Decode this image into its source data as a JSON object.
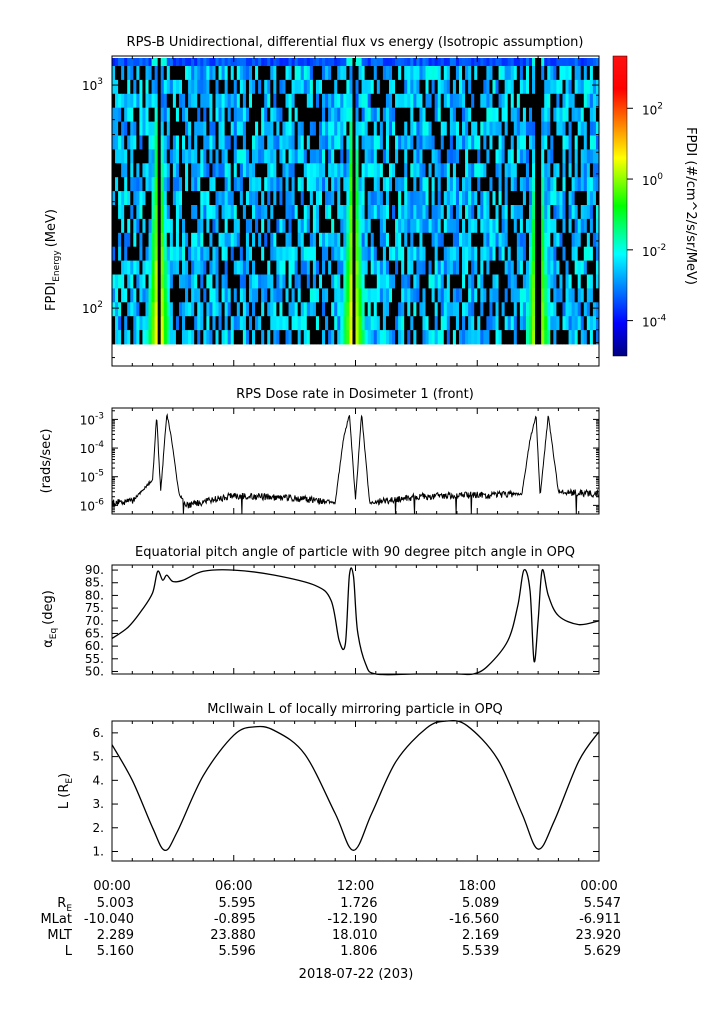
{
  "chart_data": [
    {
      "type": "heatmap",
      "title": "RPS-B  Unidirectional, differential flux vs energy (Isotropic assumption)",
      "ylabel": "FPDI",
      "ylabel_sub": "Energy",
      "ylabel_unit": "(MeV)",
      "y_scale": "log",
      "ylim": [
        55,
        1350
      ],
      "y_ticks": [
        {
          "value": 100,
          "base": "10",
          "exp": "2"
        },
        {
          "value": 1000,
          "base": "10",
          "exp": "3"
        }
      ],
      "colorbar": {
        "label": "FPDI (#/cm^2/s/sr/MeV)",
        "scale": "log",
        "range": [
          1e-05,
          3000
        ],
        "ticks": [
          {
            "value": 0.0001,
            "base": "10",
            "exp": "-4"
          },
          {
            "value": 0.01,
            "base": "10",
            "exp": "-2"
          },
          {
            "value": 1,
            "base": "10",
            "exp": "0"
          },
          {
            "value": 100,
            "base": "10",
            "exp": "2"
          }
        ]
      },
      "intensity_peaks_hours": [
        2.3,
        11.9,
        21.0
      ]
    },
    {
      "type": "line",
      "title": "RPS  Dose rate in Dosimeter 1 (front)",
      "ylabel": "(rads/sec)",
      "y_scale": "log",
      "ylim": [
        5e-07,
        0.0025
      ],
      "y_ticks": [
        {
          "value": 1e-06,
          "base": "10",
          "exp": "-6"
        },
        {
          "value": 1e-05,
          "base": "10",
          "exp": "-5"
        },
        {
          "value": 0.0001,
          "base": "10",
          "exp": "-4"
        },
        {
          "value": 0.001,
          "base": "10",
          "exp": "-3"
        }
      ],
      "x_hours": [
        0,
        1.0,
        2.0,
        2.2,
        2.4,
        2.7,
        2.9,
        3.3,
        3.7,
        6.0,
        9.0,
        11.0,
        11.4,
        11.7,
        12.0,
        12.3,
        12.7,
        15.0,
        18.0,
        20.2,
        20.6,
        20.9,
        21.1,
        21.5,
        22.0,
        24.0
      ],
      "values": [
        1.2e-06,
        1.4e-06,
        8e-06,
        0.0013,
        3e-06,
        0.0016,
        0.0003,
        2.5e-06,
        1e-06,
        2.2e-06,
        1.8e-06,
        1.2e-06,
        0.0002,
        0.0015,
        1.5e-06,
        0.0016,
        1.2e-06,
        2e-06,
        2.3e-06,
        2.5e-06,
        0.0002,
        0.0014,
        2e-06,
        0.0014,
        3e-06,
        2.5e-06
      ]
    },
    {
      "type": "line",
      "title": "Equatorial pitch angle of particle with 90 degree pitch angle in OPQ",
      "ylabel": "α",
      "ylabel_sub": "Eq",
      "ylabel_unit": "(deg)",
      "ylim": [
        49,
        92
      ],
      "y_ticks": [
        50,
        55,
        60,
        65,
        70,
        75,
        80,
        85,
        90
      ],
      "x_hours": [
        0,
        0.8,
        1.5,
        2.0,
        2.25,
        2.5,
        2.7,
        3.0,
        3.5,
        4.5,
        6.0,
        8.0,
        10.0,
        10.8,
        11.2,
        11.5,
        11.7,
        11.9,
        12.1,
        12.5,
        13.0,
        15.0,
        17.0,
        17.8,
        18.5,
        19.5,
        20.0,
        20.3,
        20.6,
        20.8,
        21.0,
        21.2,
        21.5,
        22.0,
        23.0,
        24.0
      ],
      "values": [
        63.0,
        67.5,
        74.5,
        81.0,
        89.5,
        86.0,
        88.0,
        85.5,
        86.0,
        89.5,
        90.0,
        88.0,
        84.0,
        78.0,
        62.0,
        61.0,
        88.0,
        87.5,
        66.0,
        53.0,
        49.0,
        49.0,
        49.0,
        49.0,
        52.0,
        62.0,
        76.0,
        90.0,
        82.0,
        54.0,
        70.0,
        90.0,
        80.0,
        72.0,
        68.5,
        70.0
      ]
    },
    {
      "type": "line",
      "title": "McIlwain L of locally mirroring particle in OPQ",
      "ylabel": "L (R",
      "ylabel_sub": "E",
      "ylabel_unit": ")",
      "ylim": [
        0.6,
        6.5
      ],
      "y_ticks": [
        1,
        2,
        3,
        4,
        5,
        6
      ],
      "x_hours": [
        0,
        1.0,
        2.0,
        2.6,
        3.2,
        4.5,
        6.0,
        7.0,
        8.0,
        9.5,
        11.0,
        11.9,
        12.8,
        14.0,
        15.5,
        16.5,
        17.5,
        19.0,
        20.2,
        21.0,
        21.8,
        23.0,
        24.0
      ],
      "values": [
        5.5,
        4.0,
        2.0,
        1.05,
        1.8,
        4.2,
        5.9,
        6.25,
        6.1,
        5.1,
        2.6,
        1.05,
        2.6,
        4.8,
        6.2,
        6.5,
        6.3,
        4.9,
        2.6,
        1.1,
        2.3,
        4.8,
        6.05
      ]
    }
  ],
  "time_axis": {
    "ticks": [
      "00:00",
      "06:00",
      "12:00",
      "18:00",
      "00:00"
    ],
    "date_label": "2018-07-22 (203)",
    "rows": [
      {
        "label": "R",
        "label_sub": "E",
        "values": [
          "5.003",
          "5.595",
          "1.726",
          "5.089",
          "5.547"
        ]
      },
      {
        "label": "MLat",
        "label_sub": "",
        "values": [
          "-10.040",
          "-0.895",
          "-12.190",
          "-16.560",
          "-6.911"
        ]
      },
      {
        "label": "MLT",
        "label_sub": "",
        "values": [
          "2.289",
          "23.880",
          "18.010",
          "2.169",
          "23.920"
        ]
      },
      {
        "label": "L",
        "label_sub": "",
        "values": [
          "5.160",
          "5.596",
          "1.806",
          "5.539",
          "5.629"
        ]
      }
    ]
  }
}
